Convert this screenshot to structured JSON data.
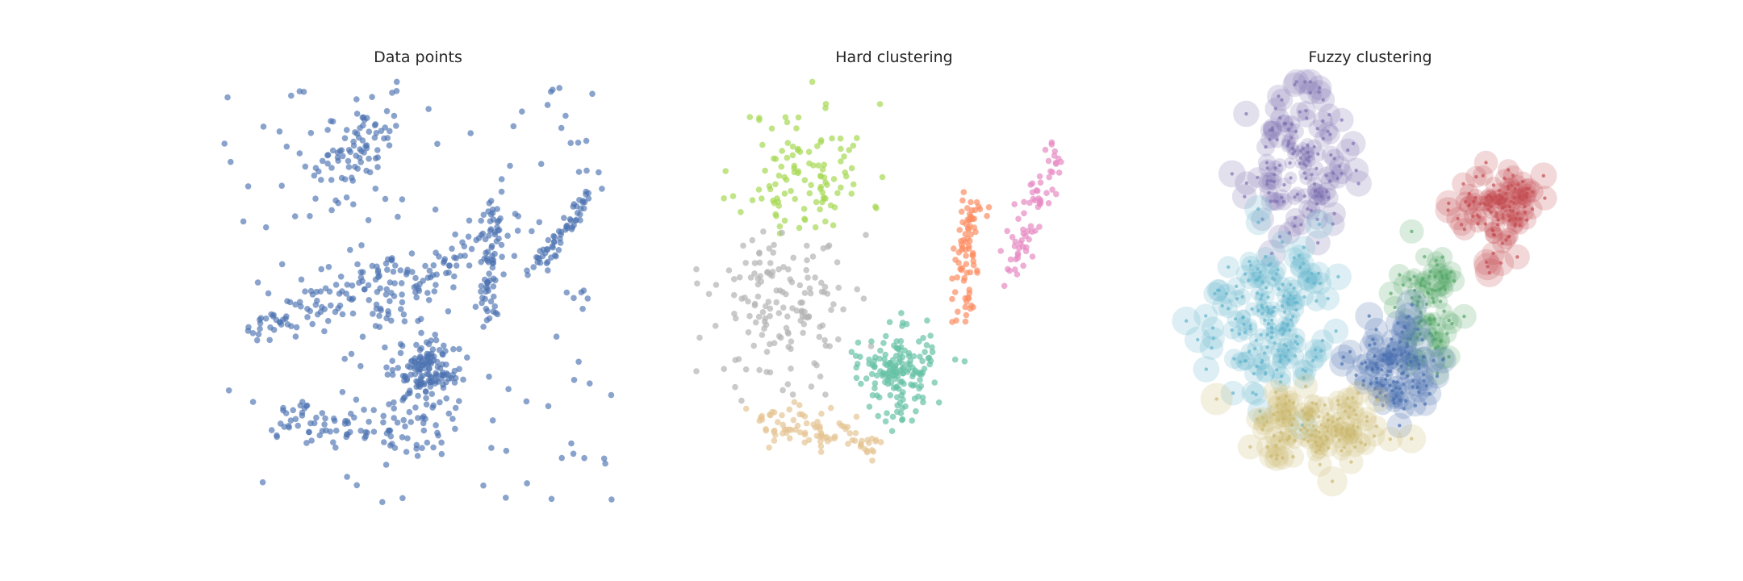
{
  "panels": [
    {
      "title": "Data points"
    },
    {
      "title": "Hard clustering"
    },
    {
      "title": "Fuzzy clustering"
    }
  ],
  "chart_data": [
    {
      "type": "scatter",
      "title": "Data points",
      "xlabel": "",
      "ylabel": "",
      "xlim": [
        0,
        1
      ],
      "ylim": [
        0,
        1
      ],
      "grid": false,
      "colors": {
        "points": "#4c72b0"
      },
      "clusters": [
        {
          "name": "",
          "shape": "line",
          "from": [
            0.28,
            0.76
          ],
          "to": [
            0.42,
            0.91
          ],
          "width": 0.035,
          "n": 80
        },
        {
          "name": "",
          "shape": "line",
          "from": [
            0.1,
            0.42
          ],
          "to": [
            0.45,
            0.56
          ],
          "width": 0.025,
          "n": 90
        },
        {
          "name": "",
          "shape": "line",
          "from": [
            0.38,
            0.44
          ],
          "to": [
            0.74,
            0.68
          ],
          "width": 0.025,
          "n": 80
        },
        {
          "name": "",
          "shape": "line",
          "from": [
            0.15,
            0.22
          ],
          "to": [
            0.55,
            0.17
          ],
          "width": 0.025,
          "n": 90
        },
        {
          "name": "",
          "shape": "blob",
          "center": [
            0.52,
            0.32
          ],
          "spread": [
            0.04,
            0.04
          ],
          "n": 140
        },
        {
          "name": "",
          "shape": "line",
          "from": [
            0.67,
            0.44
          ],
          "to": [
            0.69,
            0.72
          ],
          "width": 0.012,
          "n": 60
        },
        {
          "name": "",
          "shape": "line",
          "from": [
            0.78,
            0.55
          ],
          "to": [
            0.92,
            0.73
          ],
          "width": 0.012,
          "n": 60
        },
        {
          "name": "",
          "shape": "uniform",
          "n": 150
        }
      ]
    },
    {
      "type": "scatter",
      "title": "Hard clustering",
      "xlabel": "",
      "ylabel": "",
      "xlim": [
        0,
        1
      ],
      "ylim": [
        0,
        1
      ],
      "grid": false,
      "colors": {
        "green": "#a6d854",
        "grey": "#b3b3b3",
        "tan": "#e5c494",
        "teal": "#66c2a5",
        "orange": "#fc8d62",
        "pink": "#e78ac3"
      },
      "clusters": [
        {
          "name": "",
          "color": "green",
          "shape": "blob",
          "center": [
            0.28,
            0.78
          ],
          "spread": [
            0.08,
            0.08
          ],
          "n": 110
        },
        {
          "name": "",
          "color": "grey",
          "shape": "blob",
          "center": [
            0.22,
            0.48
          ],
          "spread": [
            0.09,
            0.09
          ],
          "n": 150
        },
        {
          "name": "",
          "color": "tan",
          "shape": "line",
          "from": [
            0.15,
            0.22
          ],
          "to": [
            0.46,
            0.16
          ],
          "width": 0.02,
          "n": 90
        },
        {
          "name": "",
          "color": "teal",
          "shape": "blob",
          "center": [
            0.52,
            0.32
          ],
          "spread": [
            0.05,
            0.05
          ],
          "n": 160
        },
        {
          "name": "",
          "color": "orange",
          "shape": "line",
          "from": [
            0.67,
            0.44
          ],
          "to": [
            0.69,
            0.72
          ],
          "width": 0.015,
          "n": 80
        },
        {
          "name": "",
          "color": "pink",
          "shape": "line",
          "from": [
            0.78,
            0.55
          ],
          "to": [
            0.92,
            0.85
          ],
          "width": 0.02,
          "n": 70
        }
      ]
    },
    {
      "type": "scatter",
      "title": "Fuzzy clustering",
      "xlabel": "",
      "ylabel": "",
      "xlim": [
        0,
        1
      ],
      "ylim": [
        0,
        1
      ],
      "grid": false,
      "colors": {
        "purple": "#8172b2",
        "red": "#c44e52",
        "cyan": "#64b5cd",
        "green": "#55a868",
        "blue": "#4c72b0",
        "tan": "#ccb974"
      },
      "clusters": [
        {
          "name": "",
          "color": "purple",
          "center": [
            0.32,
            0.8
          ],
          "spread": [
            0.06,
            0.08
          ],
          "n": 120
        },
        {
          "name": "",
          "color": "red",
          "center": [
            0.82,
            0.7
          ],
          "spread": [
            0.05,
            0.05
          ],
          "n": 110
        },
        {
          "name": "",
          "color": "cyan",
          "center": [
            0.25,
            0.45
          ],
          "spread": [
            0.07,
            0.09
          ],
          "n": 160
        },
        {
          "name": "",
          "color": "green",
          "center": [
            0.64,
            0.48
          ],
          "spread": [
            0.04,
            0.08
          ],
          "n": 80
        },
        {
          "name": "",
          "color": "blue",
          "center": [
            0.55,
            0.32
          ],
          "spread": [
            0.05,
            0.05
          ],
          "n": 110
        },
        {
          "name": "",
          "color": "tan",
          "center": [
            0.37,
            0.2
          ],
          "spread": [
            0.08,
            0.04
          ],
          "n": 130
        }
      ]
    }
  ]
}
